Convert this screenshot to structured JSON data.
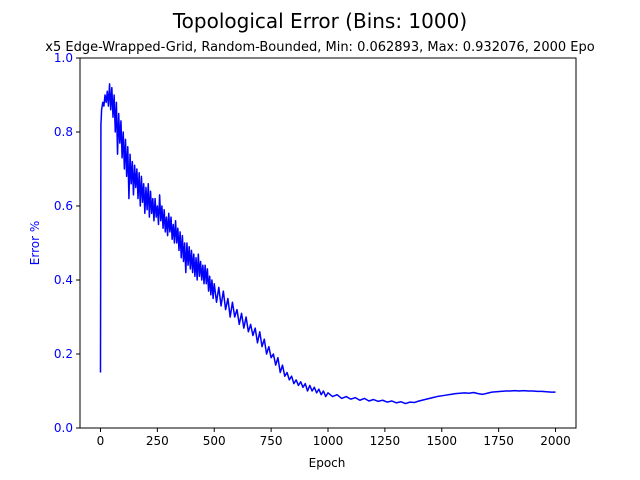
{
  "chart_data": {
    "type": "line",
    "title": "Topological Error (Bins: 1000)",
    "subtitle": "x5 Edge-Wrapped-Grid, Random-Bounded, Min: 0.062893, Max: 0.932076, 2000 Epo",
    "xlabel": "Epoch",
    "ylabel": "Error %",
    "xlim": [
      -90,
      2090
    ],
    "ylim": [
      0,
      1.0
    ],
    "x_ticks": [
      {
        "value": 0,
        "label": "0"
      },
      {
        "value": 250,
        "label": "250"
      },
      {
        "value": 500,
        "label": "500"
      },
      {
        "value": 750,
        "label": "750"
      },
      {
        "value": 1000,
        "label": "1000"
      },
      {
        "value": 1250,
        "label": "1250"
      },
      {
        "value": 1500,
        "label": "1500"
      },
      {
        "value": 1750,
        "label": "1750"
      },
      {
        "value": 2000,
        "label": "2000"
      }
    ],
    "y_ticks": [
      {
        "value": 0,
        "label": "0.0"
      },
      {
        "value": 0.2,
        "label": "0.2"
      },
      {
        "value": 0.4,
        "label": "0.4"
      },
      {
        "value": 0.6,
        "label": "0.6"
      },
      {
        "value": 0.8,
        "label": "0.8"
      },
      {
        "value": 1.0,
        "label": "1.0"
      }
    ],
    "grid": false,
    "colors": {
      "line": "#0000ff",
      "ylabel": "#0000ff",
      "ytick": "#0000ff",
      "text": "#000000"
    },
    "series": [
      {
        "color": "#0000ff",
        "points": [
          [
            0,
            0.15
          ],
          [
            2,
            0.82
          ],
          [
            5,
            0.86
          ],
          [
            10,
            0.88
          ],
          [
            15,
            0.87
          ],
          [
            20,
            0.9
          ],
          [
            25,
            0.88
          ],
          [
            30,
            0.91
          ],
          [
            35,
            0.87
          ],
          [
            40,
            0.93
          ],
          [
            45,
            0.86
          ],
          [
            50,
            0.92
          ],
          [
            55,
            0.84
          ],
          [
            60,
            0.9
          ],
          [
            65,
            0.8
          ],
          [
            70,
            0.88
          ],
          [
            75,
            0.74
          ],
          [
            80,
            0.85
          ],
          [
            85,
            0.77
          ],
          [
            90,
            0.83
          ],
          [
            95,
            0.73
          ],
          [
            100,
            0.8
          ],
          [
            105,
            0.7
          ],
          [
            110,
            0.78
          ],
          [
            115,
            0.68
          ],
          [
            120,
            0.76
          ],
          [
            125,
            0.62
          ],
          [
            130,
            0.74
          ],
          [
            135,
            0.66
          ],
          [
            140,
            0.72
          ],
          [
            145,
            0.63
          ],
          [
            150,
            0.71
          ],
          [
            155,
            0.65
          ],
          [
            160,
            0.7
          ],
          [
            165,
            0.62
          ],
          [
            170,
            0.69
          ],
          [
            175,
            0.6
          ],
          [
            180,
            0.68
          ],
          [
            185,
            0.61
          ],
          [
            190,
            0.66
          ],
          [
            195,
            0.58
          ],
          [
            200,
            0.65
          ],
          [
            205,
            0.59
          ],
          [
            210,
            0.66
          ],
          [
            215,
            0.57
          ],
          [
            220,
            0.64
          ],
          [
            225,
            0.58
          ],
          [
            230,
            0.62
          ],
          [
            235,
            0.56
          ],
          [
            240,
            0.62
          ],
          [
            245,
            0.57
          ],
          [
            250,
            0.6
          ],
          [
            255,
            0.55
          ],
          [
            260,
            0.63
          ],
          [
            265,
            0.56
          ],
          [
            270,
            0.6
          ],
          [
            275,
            0.54
          ],
          [
            280,
            0.59
          ],
          [
            285,
            0.53
          ],
          [
            290,
            0.57
          ],
          [
            295,
            0.52
          ],
          [
            300,
            0.58
          ],
          [
            305,
            0.53
          ],
          [
            310,
            0.57
          ],
          [
            315,
            0.51
          ],
          [
            320,
            0.55
          ],
          [
            325,
            0.5
          ],
          [
            330,
            0.56
          ],
          [
            335,
            0.5
          ],
          [
            340,
            0.54
          ],
          [
            345,
            0.48
          ],
          [
            350,
            0.53
          ],
          [
            355,
            0.46
          ],
          [
            360,
            0.52
          ],
          [
            365,
            0.45
          ],
          [
            370,
            0.5
          ],
          [
            375,
            0.42
          ],
          [
            380,
            0.5
          ],
          [
            385,
            0.44
          ],
          [
            390,
            0.49
          ],
          [
            395,
            0.43
          ],
          [
            400,
            0.48
          ],
          [
            405,
            0.42
          ],
          [
            410,
            0.47
          ],
          [
            415,
            0.41
          ],
          [
            420,
            0.46
          ],
          [
            425,
            0.4
          ],
          [
            430,
            0.47
          ],
          [
            435,
            0.41
          ],
          [
            440,
            0.45
          ],
          [
            445,
            0.4
          ],
          [
            450,
            0.44
          ],
          [
            455,
            0.39
          ],
          [
            460,
            0.44
          ],
          [
            465,
            0.39
          ],
          [
            470,
            0.43
          ],
          [
            475,
            0.37
          ],
          [
            480,
            0.41
          ],
          [
            485,
            0.36
          ],
          [
            490,
            0.4
          ],
          [
            495,
            0.35
          ],
          [
            500,
            0.39
          ],
          [
            510,
            0.34
          ],
          [
            520,
            0.38
          ],
          [
            530,
            0.33
          ],
          [
            540,
            0.37
          ],
          [
            550,
            0.32
          ],
          [
            560,
            0.35
          ],
          [
            570,
            0.3
          ],
          [
            580,
            0.34
          ],
          [
            590,
            0.3
          ],
          [
            600,
            0.32
          ],
          [
            610,
            0.28
          ],
          [
            620,
            0.31
          ],
          [
            630,
            0.27
          ],
          [
            640,
            0.3
          ],
          [
            650,
            0.26
          ],
          [
            660,
            0.28
          ],
          [
            670,
            0.25
          ],
          [
            680,
            0.27
          ],
          [
            690,
            0.23
          ],
          [
            700,
            0.26
          ],
          [
            710,
            0.22
          ],
          [
            720,
            0.24
          ],
          [
            730,
            0.2
          ],
          [
            740,
            0.22
          ],
          [
            750,
            0.19
          ],
          [
            760,
            0.2
          ],
          [
            770,
            0.17
          ],
          [
            780,
            0.19
          ],
          [
            790,
            0.15
          ],
          [
            800,
            0.17
          ],
          [
            810,
            0.14
          ],
          [
            820,
            0.15
          ],
          [
            830,
            0.13
          ],
          [
            840,
            0.14
          ],
          [
            850,
            0.12
          ],
          [
            860,
            0.13
          ],
          [
            870,
            0.115
          ],
          [
            880,
            0.125
          ],
          [
            890,
            0.11
          ],
          [
            900,
            0.12
          ],
          [
            910,
            0.1
          ],
          [
            920,
            0.115
          ],
          [
            930,
            0.1
          ],
          [
            940,
            0.11
          ],
          [
            950,
            0.095
          ],
          [
            960,
            0.105
          ],
          [
            970,
            0.09
          ],
          [
            980,
            0.1
          ],
          [
            990,
            0.085
          ],
          [
            1000,
            0.095
          ],
          [
            1020,
            0.085
          ],
          [
            1040,
            0.09
          ],
          [
            1060,
            0.08
          ],
          [
            1080,
            0.085
          ],
          [
            1100,
            0.078
          ],
          [
            1120,
            0.082
          ],
          [
            1140,
            0.075
          ],
          [
            1160,
            0.08
          ],
          [
            1180,
            0.073
          ],
          [
            1200,
            0.077
          ],
          [
            1220,
            0.072
          ],
          [
            1240,
            0.075
          ],
          [
            1260,
            0.07
          ],
          [
            1280,
            0.073
          ],
          [
            1300,
            0.068
          ],
          [
            1320,
            0.071
          ],
          [
            1340,
            0.066
          ],
          [
            1360,
            0.07
          ],
          [
            1380,
            0.069
          ],
          [
            1400,
            0.073
          ],
          [
            1420,
            0.076
          ],
          [
            1440,
            0.079
          ],
          [
            1460,
            0.082
          ],
          [
            1480,
            0.085
          ],
          [
            1500,
            0.087
          ],
          [
            1520,
            0.089
          ],
          [
            1540,
            0.091
          ],
          [
            1560,
            0.093
          ],
          [
            1580,
            0.094
          ],
          [
            1600,
            0.095
          ],
          [
            1620,
            0.094
          ],
          [
            1640,
            0.096
          ],
          [
            1660,
            0.093
          ],
          [
            1680,
            0.091
          ],
          [
            1700,
            0.094
          ],
          [
            1720,
            0.097
          ],
          [
            1740,
            0.098
          ],
          [
            1760,
            0.099
          ],
          [
            1780,
            0.1
          ],
          [
            1800,
            0.1
          ],
          [
            1820,
            0.101
          ],
          [
            1840,
            0.1
          ],
          [
            1860,
            0.101
          ],
          [
            1880,
            0.1
          ],
          [
            1900,
            0.1
          ],
          [
            1920,
            0.099
          ],
          [
            1940,
            0.099
          ],
          [
            1960,
            0.098
          ],
          [
            1980,
            0.097
          ],
          [
            2000,
            0.097
          ]
        ]
      }
    ]
  }
}
